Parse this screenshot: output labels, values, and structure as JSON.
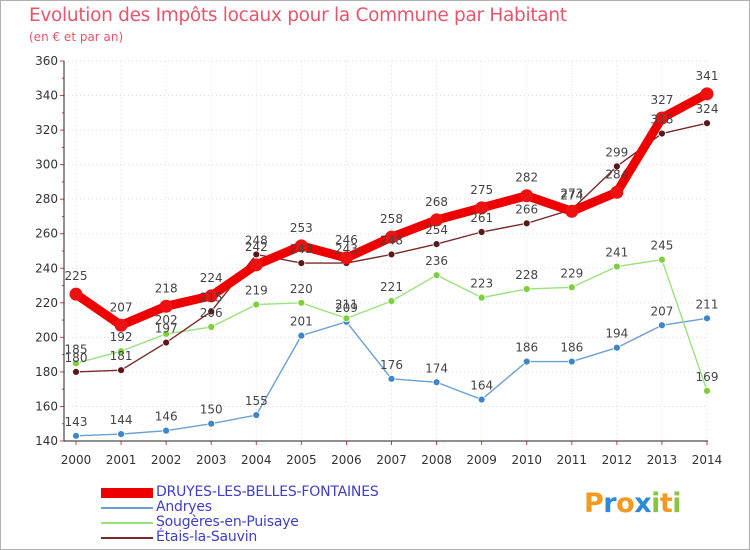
{
  "title": "Evolution des Impôts locaux pour la Commune par Habitant",
  "subtitle": "(en € et par an)",
  "logo": {
    "letters": [
      "P",
      "r",
      "o",
      "x",
      "i",
      "t",
      "i"
    ],
    "colors": [
      "#f29a1f",
      "#2e8bd6",
      "#f29a1f",
      "#2e8bd6",
      "#8ac43f",
      "#f29a1f",
      "#8ac43f"
    ]
  },
  "chart_data": {
    "type": "line",
    "title": "Evolution des Impôts locaux pour la Commune par Habitant",
    "subtitle": "(en € et par an)",
    "xlabel": "",
    "ylabel": "",
    "ylim": [
      140,
      360
    ],
    "yticks": [
      140,
      160,
      180,
      200,
      220,
      240,
      260,
      280,
      300,
      320,
      340,
      360
    ],
    "x": [
      "2000",
      "2001",
      "2002",
      "2003",
      "2004",
      "2005",
      "2006",
      "2007",
      "2008",
      "2009",
      "2010",
      "2011",
      "2012",
      "2013",
      "2014"
    ],
    "grid": true,
    "legend_position": "bottom-left",
    "series": [
      {
        "name": "DRUYES-LES-BELLES-FONTAINES",
        "color": "#ee0000",
        "marker_color": "#ee1111",
        "width": "thick",
        "values": [
          225,
          207,
          218,
          224,
          242,
          253,
          246,
          258,
          268,
          275,
          282,
          273,
          284,
          327,
          341
        ]
      },
      {
        "name": "Andryes",
        "color": "#6aa0d2",
        "marker_color": "#3d86c9",
        "width": "thin",
        "values": [
          143,
          144,
          146,
          150,
          155,
          201,
          209,
          176,
          174,
          164,
          186,
          186,
          194,
          207,
          211
        ]
      },
      {
        "name": "Sougères-en-Puisaye",
        "color": "#9be27f",
        "marker_color": "#7fcf3c",
        "width": "thin",
        "values": [
          185,
          192,
          202,
          206,
          219,
          220,
          211,
          221,
          236,
          223,
          228,
          229,
          241,
          245,
          169
        ]
      },
      {
        "name": "Étais-la-Sauvin",
        "color": "#7a2a2a",
        "marker_color": "#5a1818",
        "width": "thin",
        "values": [
          180,
          181,
          197,
          215,
          248,
          243,
          243,
          248,
          254,
          261,
          266,
          274,
          299,
          318,
          324
        ]
      }
    ]
  }
}
